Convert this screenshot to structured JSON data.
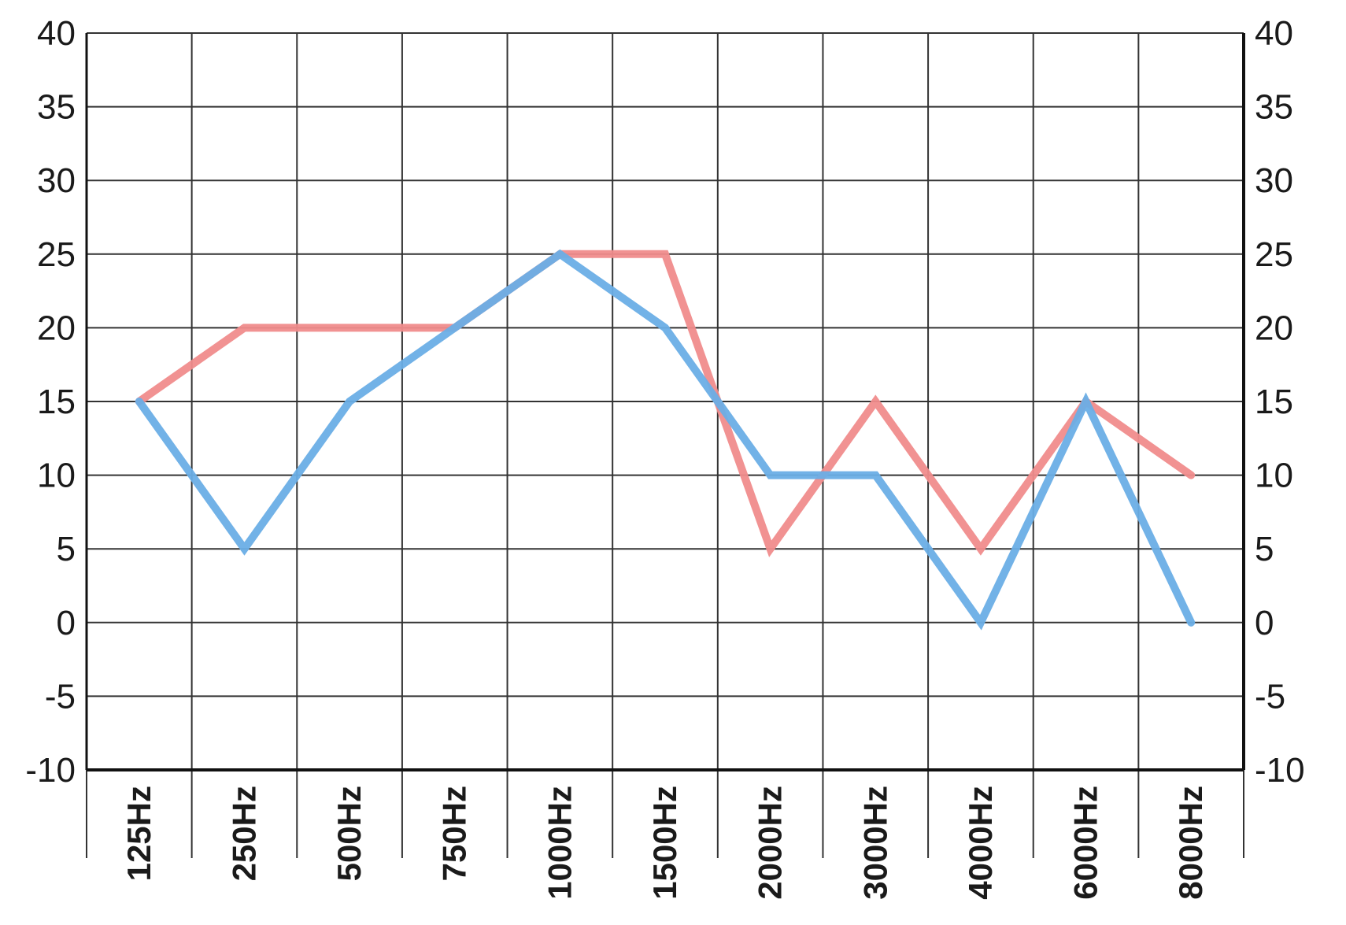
{
  "chart_data": {
    "type": "line",
    "categories": [
      "125Hz",
      "250Hz",
      "500Hz",
      "750Hz",
      "1000Hz",
      "1500Hz",
      "2000Hz",
      "3000Hz",
      "4000Hz",
      "6000Hz",
      "8000Hz"
    ],
    "series": [
      {
        "color": "#f08c8c",
        "values": [
          15,
          20,
          20,
          20,
          25,
          25,
          5,
          15,
          5,
          15,
          10
        ]
      },
      {
        "color": "#6aaee6",
        "values": [
          15,
          5,
          15,
          20,
          25,
          20,
          10,
          10,
          0,
          15,
          0
        ]
      }
    ],
    "ylim": [
      -10,
      40
    ],
    "yticks": [
      -10,
      -5,
      0,
      5,
      10,
      15,
      20,
      25,
      30,
      35,
      40
    ],
    "y_axes": [
      "left",
      "right"
    ],
    "grid": true,
    "legend": "none"
  }
}
